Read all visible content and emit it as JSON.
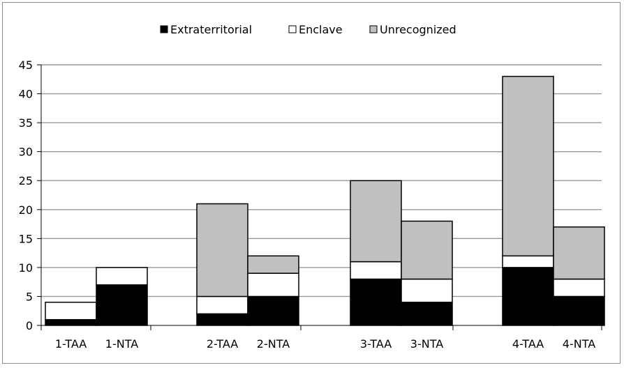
{
  "chart_data": {
    "type": "bar",
    "stacked": true,
    "categories": [
      "1-TAA",
      "1-NTA",
      "2-TAA",
      "2-NTA",
      "3-TAA",
      "3-NTA",
      "4-TAA",
      "4-NTA"
    ],
    "series": [
      {
        "name": "Extraterritorial",
        "color": "#000000",
        "values": [
          1,
          7,
          2,
          5,
          8,
          4,
          10,
          5
        ]
      },
      {
        "name": "Enclave",
        "color": "#ffffff",
        "values": [
          3,
          3,
          3,
          4,
          3,
          4,
          2,
          3
        ]
      },
      {
        "name": "Unrecognized",
        "color": "#c0c0c0",
        "values": [
          0,
          0,
          16,
          3,
          14,
          10,
          31,
          9
        ]
      }
    ],
    "ylim": [
      0,
      45
    ],
    "yticks": [
      "0",
      "5",
      "10",
      "15",
      "20",
      "25",
      "30",
      "35",
      "40",
      "45"
    ],
    "grid": true,
    "legend_position": "top-center"
  }
}
